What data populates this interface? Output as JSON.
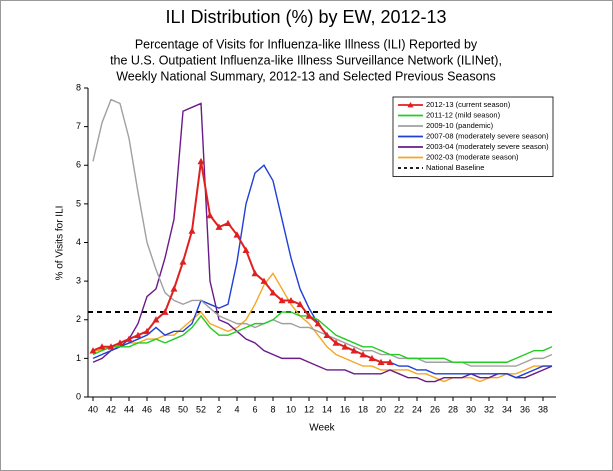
{
  "chart_data": {
    "type": "line",
    "title": "ILI Distribution (%) by EW, 2012-13",
    "subtitle": [
      "Percentage of Visits for Influenza-like Illness (ILI) Reported by",
      "the U.S. Outpatient Influenza-like Illness Surveillance Network (ILINet),",
      "Weekly National Summary, 2012-13 and Selected Previous Seasons"
    ],
    "x_label": "Week",
    "y_label": "% of Visits for ILI",
    "categories": [
      40,
      null,
      42,
      null,
      44,
      null,
      46,
      null,
      48,
      null,
      50,
      null,
      52,
      null,
      2,
      null,
      4,
      null,
      6,
      null,
      8,
      null,
      10,
      null,
      12,
      null,
      14,
      null,
      16,
      null,
      18,
      null,
      20,
      null,
      22,
      null,
      24,
      null,
      26,
      null,
      28,
      null,
      30,
      null,
      32,
      null,
      34,
      null,
      36,
      null,
      38,
      null
    ],
    "ylim": [
      0,
      8
    ],
    "yticks": [
      0,
      1,
      2,
      3,
      4,
      5,
      6,
      7,
      8
    ],
    "series": [
      {
        "name": "2012-13 (current season)",
        "color": "#e02020",
        "marker": "triangle",
        "values": [
          1.2,
          1.3,
          1.3,
          1.4,
          1.5,
          1.6,
          1.7,
          2.0,
          2.2,
          2.8,
          3.5,
          4.3,
          6.1,
          4.7,
          4.4,
          4.5,
          4.2,
          3.8,
          3.2,
          3.0,
          2.7,
          2.5,
          2.5,
          2.4,
          2.1,
          1.9,
          1.6,
          1.4,
          1.3,
          1.2,
          1.1,
          1.0,
          0.9,
          0.9,
          null,
          null,
          null,
          null,
          null,
          null,
          null,
          null,
          null,
          null,
          null,
          null,
          null,
          null,
          null,
          null,
          null,
          null
        ]
      },
      {
        "name": "2011-12 (mild season)",
        "color": "#22cc22",
        "values": [
          1.1,
          1.2,
          1.3,
          1.3,
          1.3,
          1.4,
          1.4,
          1.5,
          1.4,
          1.5,
          1.6,
          1.8,
          2.1,
          1.8,
          1.6,
          1.6,
          1.7,
          1.8,
          1.9,
          1.9,
          2.0,
          2.2,
          2.2,
          2.1,
          2.1,
          2.0,
          1.8,
          1.6,
          1.5,
          1.4,
          1.3,
          1.3,
          1.2,
          1.1,
          1.1,
          1.0,
          1.0,
          1.0,
          1.0,
          1.0,
          0.9,
          0.9,
          0.9,
          0.9,
          0.9,
          0.9,
          0.9,
          1.0,
          1.1,
          1.2,
          1.2,
          1.3
        ]
      },
      {
        "name": "2009-10 (pandemic)",
        "color": "#a0a0a0",
        "values": [
          6.1,
          7.1,
          7.7,
          7.6,
          6.7,
          5.3,
          4.0,
          3.3,
          2.7,
          2.5,
          2.4,
          2.5,
          2.5,
          2.3,
          2.1,
          2.0,
          1.9,
          1.9,
          1.8,
          1.9,
          2.0,
          1.9,
          1.9,
          1.8,
          1.8,
          1.7,
          1.6,
          1.5,
          1.4,
          1.3,
          1.2,
          1.2,
          1.1,
          1.1,
          1.0,
          1.0,
          1.0,
          0.9,
          0.9,
          0.9,
          0.9,
          0.9,
          0.8,
          0.8,
          0.8,
          0.8,
          0.8,
          0.8,
          0.9,
          1.0,
          1.0,
          1.1
        ]
      },
      {
        "name": "2007-08 (moderately severe season)",
        "color": "#1f3fd6",
        "values": [
          1.0,
          1.1,
          1.2,
          1.3,
          1.4,
          1.5,
          1.6,
          1.8,
          1.6,
          1.7,
          1.7,
          1.9,
          2.5,
          2.4,
          2.3,
          2.4,
          3.5,
          5.0,
          5.8,
          6.0,
          5.6,
          4.6,
          3.6,
          2.8,
          2.3,
          1.9,
          1.6,
          1.4,
          1.3,
          1.2,
          1.1,
          1.0,
          0.9,
          0.9,
          0.8,
          0.8,
          0.7,
          0.7,
          0.6,
          0.6,
          0.6,
          0.6,
          0.6,
          0.6,
          0.6,
          0.6,
          0.6,
          0.5,
          0.6,
          0.7,
          0.8,
          0.8
        ]
      },
      {
        "name": "2003-04 (moderately severe season)",
        "color": "#6a1b8a",
        "values": [
          0.9,
          1.0,
          1.2,
          1.3,
          1.5,
          1.9,
          2.6,
          2.8,
          3.6,
          4.6,
          7.4,
          7.5,
          7.6,
          3.0,
          2.0,
          1.9,
          1.7,
          1.5,
          1.4,
          1.2,
          1.1,
          1.0,
          1.0,
          1.0,
          0.9,
          0.8,
          0.7,
          0.7,
          0.7,
          0.6,
          0.6,
          0.6,
          0.6,
          0.7,
          0.6,
          0.5,
          0.5,
          0.4,
          0.4,
          0.5,
          0.5,
          0.5,
          0.6,
          0.5,
          0.5,
          0.6,
          0.6,
          0.5,
          0.5,
          0.6,
          0.7,
          0.8
        ]
      },
      {
        "name": "2002-03 (moderate season)",
        "color": "#f5a623",
        "values": [
          1.2,
          1.2,
          1.3,
          1.3,
          1.4,
          1.4,
          1.5,
          1.5,
          1.6,
          1.6,
          1.8,
          2.0,
          2.2,
          1.9,
          1.8,
          1.7,
          1.8,
          2.0,
          2.4,
          2.9,
          3.2,
          2.8,
          2.4,
          2.1,
          1.9,
          1.6,
          1.3,
          1.1,
          1.0,
          0.9,
          0.8,
          0.8,
          0.7,
          0.7,
          0.7,
          0.7,
          0.6,
          0.6,
          0.5,
          0.4,
          0.5,
          0.5,
          0.5,
          0.4,
          0.5,
          0.5,
          0.6,
          0.6,
          0.7,
          0.8,
          0.8,
          0.8
        ]
      }
    ],
    "baseline": {
      "name": "National Baseline",
      "value": 2.2,
      "color": "#000000"
    },
    "legend": "upper-right"
  }
}
